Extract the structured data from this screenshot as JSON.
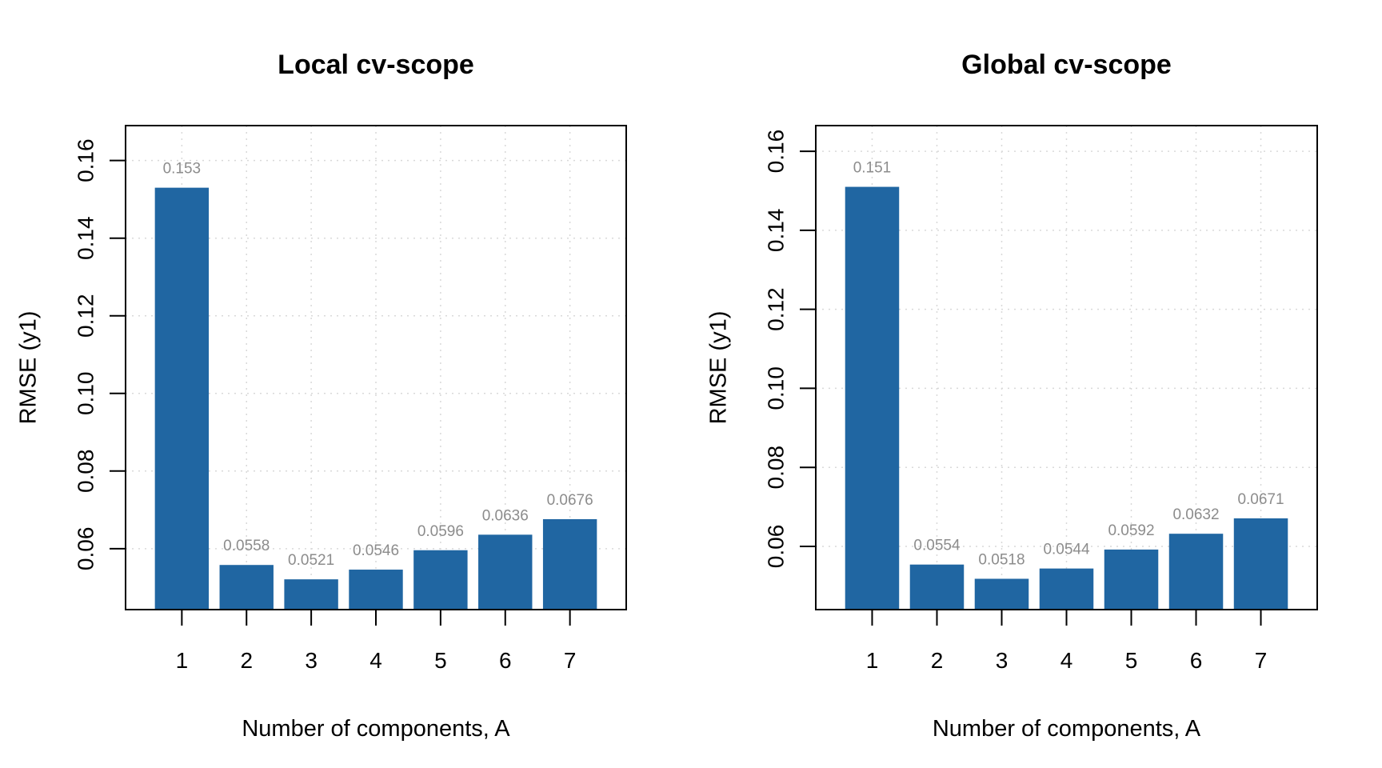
{
  "chart_data": [
    {
      "type": "bar",
      "title": "Local cv-scope",
      "xlabel": "Number of components, A",
      "ylabel": "RMSE (y1)",
      "categories": [
        "1",
        "2",
        "3",
        "4",
        "5",
        "6",
        "7"
      ],
      "values": [
        0.153,
        0.0558,
        0.0521,
        0.0546,
        0.0596,
        0.0636,
        0.0676
      ],
      "data_labels": [
        "0.153",
        "0.0558",
        "0.0521",
        "0.0546",
        "0.0596",
        "0.0636",
        "0.0676"
      ],
      "yticks": [
        "0.06",
        "0.08",
        "0.10",
        "0.12",
        "0.14",
        "0.16"
      ],
      "ylim": [
        0.0443,
        0.169
      ],
      "grid": true,
      "bar_color": "#2066a2"
    },
    {
      "type": "bar",
      "title": "Global cv-scope",
      "xlabel": "Number of components, A",
      "ylabel": "RMSE (y1)",
      "categories": [
        "1",
        "2",
        "3",
        "4",
        "5",
        "6",
        "7"
      ],
      "values": [
        0.151,
        0.0554,
        0.0518,
        0.0544,
        0.0592,
        0.0632,
        0.0671
      ],
      "data_labels": [
        "0.151",
        "0.0554",
        "0.0518",
        "0.0544",
        "0.0592",
        "0.0632",
        "0.0671"
      ],
      "yticks": [
        "0.06",
        "0.08",
        "0.10",
        "0.12",
        "0.14",
        "0.16"
      ],
      "ylim": [
        0.044,
        0.1665
      ],
      "grid": true,
      "bar_color": "#2066a2"
    }
  ]
}
